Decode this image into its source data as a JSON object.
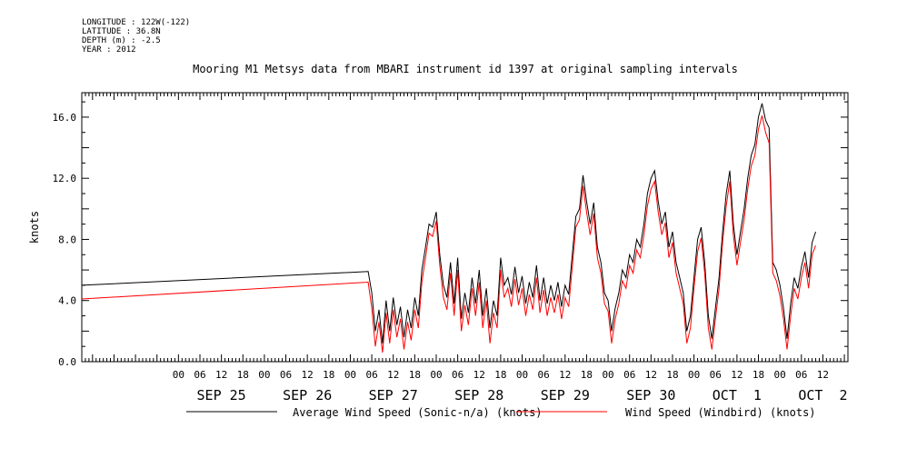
{
  "meta": {
    "longitude": "LONGITUDE : 122W(-122)",
    "latitude": "LATITUDE : 36.8N",
    "depth": "DEPTH (m) : -2.5",
    "year": "YEAR : 2012"
  },
  "chart_data": {
    "type": "line",
    "title": "Mooring M1 Metsys data from MBARI instrument id 1397 at original sampling intervals",
    "xlabel": "",
    "ylabel": "knots",
    "x_unit": "hours from 2012-09-24 00:00",
    "xlim": [
      -3,
      211
    ],
    "ylim": [
      0,
      17.6
    ],
    "y_ticks": [
      0,
      4,
      8,
      12,
      16
    ],
    "y_tick_labels": [
      "0.0",
      "4.0",
      "8.0",
      "12.0",
      "16.0"
    ],
    "x_hour_ticks": [
      {
        "x": 24,
        "label": "00"
      },
      {
        "x": 30,
        "label": "06"
      },
      {
        "x": 36,
        "label": "12"
      },
      {
        "x": 42,
        "label": "18"
      },
      {
        "x": 48,
        "label": "00"
      },
      {
        "x": 54,
        "label": "06"
      },
      {
        "x": 60,
        "label": "12"
      },
      {
        "x": 66,
        "label": "18"
      },
      {
        "x": 72,
        "label": "00"
      },
      {
        "x": 78,
        "label": "06"
      },
      {
        "x": 84,
        "label": "12"
      },
      {
        "x": 90,
        "label": "18"
      },
      {
        "x": 96,
        "label": "00"
      },
      {
        "x": 102,
        "label": "06"
      },
      {
        "x": 108,
        "label": "12"
      },
      {
        "x": 114,
        "label": "18"
      },
      {
        "x": 120,
        "label": "00"
      },
      {
        "x": 126,
        "label": "06"
      },
      {
        "x": 132,
        "label": "12"
      },
      {
        "x": 138,
        "label": "18"
      },
      {
        "x": 144,
        "label": "00"
      },
      {
        "x": 150,
        "label": "06"
      },
      {
        "x": 156,
        "label": "12"
      },
      {
        "x": 162,
        "label": "18"
      },
      {
        "x": 168,
        "label": "00"
      },
      {
        "x": 174,
        "label": "06"
      },
      {
        "x": 180,
        "label": "12"
      },
      {
        "x": 186,
        "label": "18"
      },
      {
        "x": 192,
        "label": "00"
      },
      {
        "x": 198,
        "label": "06"
      },
      {
        "x": 204,
        "label": "12"
      }
    ],
    "x_day_labels": [
      {
        "x": 36,
        "label": "SEP 25"
      },
      {
        "x": 60,
        "label": "SEP 26"
      },
      {
        "x": 84,
        "label": "SEP 27"
      },
      {
        "x": 108,
        "label": "SEP 28"
      },
      {
        "x": 132,
        "label": "SEP 29"
      },
      {
        "x": 156,
        "label": "SEP 30"
      },
      {
        "x": 180,
        "label": "OCT  1"
      },
      {
        "x": 204,
        "label": "OCT  2"
      }
    ],
    "legend_position": "bottom",
    "series": [
      {
        "name": "Average Wind Speed (Sonic-n/a) (knots)",
        "color": "#000000",
        "points": [
          [
            -3,
            5.0
          ],
          [
            77,
            5.9
          ],
          [
            78,
            4.5
          ],
          [
            79,
            2.0
          ],
          [
            80,
            3.4
          ],
          [
            81,
            1.2
          ],
          [
            82,
            4.0
          ],
          [
            83,
            2.0
          ],
          [
            84,
            4.2
          ],
          [
            85,
            2.4
          ],
          [
            86,
            3.6
          ],
          [
            87,
            1.6
          ],
          [
            88,
            3.4
          ],
          [
            89,
            2.2
          ],
          [
            90,
            4.2
          ],
          [
            91,
            3.0
          ],
          [
            92,
            6.0
          ],
          [
            93,
            7.5
          ],
          [
            94,
            9.0
          ],
          [
            95,
            8.8
          ],
          [
            96,
            9.8
          ],
          [
            97,
            7.0
          ],
          [
            98,
            5.0
          ],
          [
            99,
            4.2
          ],
          [
            100,
            6.5
          ],
          [
            101,
            3.8
          ],
          [
            102,
            6.8
          ],
          [
            103,
            2.8
          ],
          [
            104,
            4.5
          ],
          [
            105,
            3.2
          ],
          [
            106,
            5.5
          ],
          [
            107,
            3.8
          ],
          [
            108,
            6.0
          ],
          [
            109,
            3.0
          ],
          [
            110,
            4.8
          ],
          [
            111,
            2.2
          ],
          [
            112,
            4.0
          ],
          [
            113,
            3.0
          ],
          [
            114,
            6.8
          ],
          [
            115,
            5.0
          ],
          [
            116,
            5.5
          ],
          [
            117,
            4.4
          ],
          [
            118,
            6.2
          ],
          [
            119,
            4.5
          ],
          [
            120,
            5.6
          ],
          [
            121,
            3.8
          ],
          [
            122,
            5.2
          ],
          [
            123,
            4.2
          ],
          [
            124,
            6.3
          ],
          [
            125,
            4.0
          ],
          [
            126,
            5.5
          ],
          [
            127,
            3.8
          ],
          [
            128,
            5.0
          ],
          [
            129,
            4.0
          ],
          [
            130,
            5.2
          ],
          [
            131,
            3.6
          ],
          [
            132,
            5.0
          ],
          [
            133,
            4.4
          ],
          [
            134,
            7.0
          ],
          [
            135,
            9.5
          ],
          [
            136,
            10.0
          ],
          [
            137,
            12.2
          ],
          [
            138,
            10.5
          ],
          [
            139,
            9.0
          ],
          [
            140,
            10.4
          ],
          [
            141,
            7.5
          ],
          [
            142,
            6.5
          ],
          [
            143,
            4.5
          ],
          [
            144,
            4.0
          ],
          [
            145,
            2.0
          ],
          [
            146,
            3.5
          ],
          [
            147,
            4.5
          ],
          [
            148,
            6.0
          ],
          [
            149,
            5.5
          ],
          [
            150,
            7.0
          ],
          [
            151,
            6.5
          ],
          [
            152,
            8.0
          ],
          [
            153,
            7.5
          ],
          [
            154,
            9.0
          ],
          [
            155,
            11.0
          ],
          [
            156,
            12.0
          ],
          [
            157,
            12.5
          ],
          [
            158,
            10.5
          ],
          [
            159,
            9.0
          ],
          [
            160,
            9.8
          ],
          [
            161,
            7.5
          ],
          [
            162,
            8.5
          ],
          [
            163,
            6.5
          ],
          [
            164,
            5.5
          ],
          [
            165,
            4.5
          ],
          [
            166,
            2.0
          ],
          [
            167,
            3.0
          ],
          [
            168,
            5.5
          ],
          [
            169,
            8.0
          ],
          [
            170,
            8.8
          ],
          [
            171,
            6.5
          ],
          [
            172,
            3.0
          ],
          [
            173,
            1.5
          ],
          [
            174,
            3.5
          ],
          [
            175,
            5.5
          ],
          [
            176,
            8.5
          ],
          [
            177,
            11.0
          ],
          [
            178,
            12.5
          ],
          [
            179,
            9.0
          ],
          [
            180,
            7.0
          ],
          [
            181,
            8.5
          ],
          [
            182,
            10.0
          ],
          [
            183,
            12.0
          ],
          [
            184,
            13.5
          ],
          [
            185,
            14.2
          ],
          [
            186,
            16.0
          ],
          [
            187,
            16.9
          ],
          [
            188,
            15.8
          ],
          [
            189,
            15.3
          ],
          [
            190,
            6.5
          ],
          [
            191,
            6.0
          ],
          [
            192,
            5.0
          ],
          [
            193,
            3.5
          ],
          [
            194,
            1.5
          ],
          [
            195,
            3.8
          ],
          [
            196,
            5.5
          ],
          [
            197,
            4.8
          ],
          [
            198,
            6.2
          ],
          [
            199,
            7.2
          ],
          [
            200,
            5.5
          ],
          [
            201,
            7.8
          ],
          [
            202,
            8.5
          ]
        ]
      },
      {
        "name": "Wind Speed (Windbird) (knots)",
        "color": "#ff0000",
        "points": [
          [
            -3,
            4.1
          ],
          [
            77,
            5.2
          ],
          [
            78,
            3.5
          ],
          [
            79,
            1.0
          ],
          [
            80,
            2.6
          ],
          [
            81,
            0.6
          ],
          [
            82,
            3.2
          ],
          [
            83,
            1.2
          ],
          [
            84,
            3.4
          ],
          [
            85,
            1.6
          ],
          [
            86,
            2.8
          ],
          [
            87,
            0.8
          ],
          [
            88,
            2.6
          ],
          [
            89,
            1.4
          ],
          [
            90,
            3.4
          ],
          [
            91,
            2.2
          ],
          [
            92,
            5.2
          ],
          [
            93,
            6.8
          ],
          [
            94,
            8.4
          ],
          [
            95,
            8.2
          ],
          [
            96,
            9.2
          ],
          [
            97,
            6.3
          ],
          [
            98,
            4.2
          ],
          [
            99,
            3.4
          ],
          [
            100,
            5.8
          ],
          [
            101,
            3.0
          ],
          [
            102,
            6.0
          ],
          [
            103,
            2.0
          ],
          [
            104,
            3.7
          ],
          [
            105,
            2.4
          ],
          [
            106,
            4.8
          ],
          [
            107,
            3.0
          ],
          [
            108,
            5.2
          ],
          [
            109,
            2.2
          ],
          [
            110,
            4.0
          ],
          [
            111,
            1.2
          ],
          [
            112,
            3.2
          ],
          [
            113,
            2.2
          ],
          [
            114,
            6.0
          ],
          [
            115,
            4.2
          ],
          [
            116,
            4.8
          ],
          [
            117,
            3.6
          ],
          [
            118,
            5.4
          ],
          [
            119,
            3.7
          ],
          [
            120,
            4.8
          ],
          [
            121,
            3.0
          ],
          [
            122,
            4.4
          ],
          [
            123,
            3.4
          ],
          [
            124,
            5.5
          ],
          [
            125,
            3.2
          ],
          [
            126,
            4.7
          ],
          [
            127,
            3.0
          ],
          [
            128,
            4.2
          ],
          [
            129,
            3.2
          ],
          [
            130,
            4.4
          ],
          [
            131,
            2.8
          ],
          [
            132,
            4.2
          ],
          [
            133,
            3.6
          ],
          [
            134,
            6.2
          ],
          [
            135,
            8.8
          ],
          [
            136,
            9.3
          ],
          [
            137,
            11.5
          ],
          [
            138,
            9.8
          ],
          [
            139,
            8.3
          ],
          [
            140,
            9.7
          ],
          [
            141,
            6.8
          ],
          [
            142,
            5.8
          ],
          [
            143,
            3.8
          ],
          [
            144,
            3.3
          ],
          [
            145,
            1.2
          ],
          [
            146,
            2.8
          ],
          [
            147,
            3.8
          ],
          [
            148,
            5.3
          ],
          [
            149,
            4.8
          ],
          [
            150,
            6.3
          ],
          [
            151,
            5.8
          ],
          [
            152,
            7.3
          ],
          [
            153,
            6.8
          ],
          [
            154,
            8.3
          ],
          [
            155,
            10.2
          ],
          [
            156,
            11.3
          ],
          [
            157,
            11.8
          ],
          [
            158,
            9.8
          ],
          [
            159,
            8.3
          ],
          [
            160,
            9.1
          ],
          [
            161,
            6.8
          ],
          [
            162,
            7.8
          ],
          [
            163,
            5.8
          ],
          [
            164,
            4.8
          ],
          [
            165,
            3.8
          ],
          [
            166,
            1.2
          ],
          [
            167,
            2.2
          ],
          [
            168,
            4.8
          ],
          [
            169,
            7.2
          ],
          [
            170,
            8.1
          ],
          [
            171,
            5.8
          ],
          [
            172,
            2.2
          ],
          [
            173,
            0.8
          ],
          [
            174,
            2.8
          ],
          [
            175,
            4.8
          ],
          [
            176,
            7.8
          ],
          [
            177,
            10.2
          ],
          [
            178,
            11.8
          ],
          [
            179,
            8.3
          ],
          [
            180,
            6.3
          ],
          [
            181,
            7.8
          ],
          [
            182,
            9.3
          ],
          [
            183,
            11.3
          ],
          [
            184,
            12.8
          ],
          [
            185,
            13.5
          ],
          [
            186,
            15.2
          ],
          [
            187,
            16.1
          ],
          [
            188,
            15.0
          ],
          [
            189,
            14.3
          ],
          [
            190,
            5.8
          ],
          [
            191,
            5.3
          ],
          [
            192,
            4.3
          ],
          [
            193,
            2.8
          ],
          [
            194,
            0.8
          ],
          [
            195,
            3.0
          ],
          [
            196,
            4.8
          ],
          [
            197,
            4.1
          ],
          [
            198,
            5.5
          ],
          [
            199,
            6.5
          ],
          [
            200,
            4.8
          ],
          [
            201,
            7.0
          ],
          [
            202,
            7.6
          ]
        ]
      }
    ]
  }
}
